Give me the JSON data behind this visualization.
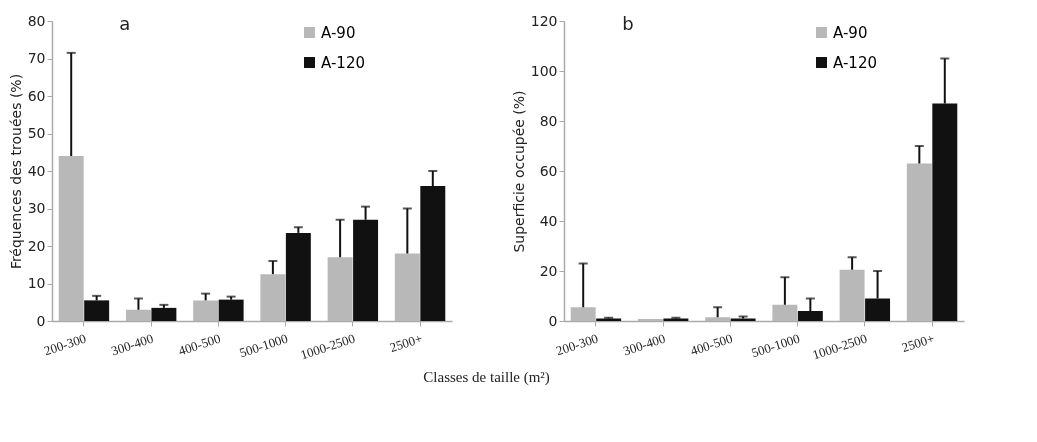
{
  "chart_data": [
    {
      "type": "bar",
      "title": "a",
      "xlabel": "Classes de taille (m²)",
      "ylabel": "Fréquences des trouées (%)",
      "categories": [
        "200-300",
        "300-400",
        "400-500",
        "500-1000",
        "1000-2500",
        "2500+"
      ],
      "ylim": [
        0,
        80
      ],
      "yticks": [
        0,
        10,
        20,
        30,
        40,
        50,
        60,
        70,
        80
      ],
      "grid": false,
      "legend": "top right",
      "series": [
        {
          "name": "A-90",
          "color": "#b8b8b8",
          "values": [
            44,
            3,
            5.5,
            12.5,
            17,
            18
          ],
          "errors": [
            [
              44,
              71.5
            ],
            [
              3,
              6
            ],
            [
              5.5,
              7.3
            ],
            [
              12.5,
              16
            ],
            [
              17,
              27
            ],
            [
              18,
              30
            ]
          ]
        },
        {
          "name": "A-120",
          "color": "#111111",
          "values": [
            5.5,
            3.5,
            5.7,
            23.5,
            27,
            36
          ],
          "errors": [
            [
              5.5,
              6.7
            ],
            [
              3.5,
              4.3
            ],
            [
              5.7,
              6.5
            ],
            [
              23.5,
              25
            ],
            [
              27,
              30.5
            ],
            [
              36,
              40
            ]
          ]
        }
      ]
    },
    {
      "type": "bar",
      "title": "b",
      "ylabel": "Superficie occupée (%)",
      "categories": [
        "200-300",
        "300-400",
        "400-500",
        "500-1000",
        "1000-2500",
        "2500+"
      ],
      "ylim": [
        0,
        120
      ],
      "yticks": [
        0,
        20,
        40,
        60,
        80,
        100,
        120
      ],
      "grid": false,
      "legend": "top right",
      "series": [
        {
          "name": "A-90",
          "color": "#b8b8b8",
          "values": [
            5.5,
            0.8,
            1.5,
            6.5,
            20.5,
            63
          ],
          "errors": [
            [
              5.5,
              23
            ],
            null,
            [
              1.5,
              5.5
            ],
            [
              6.5,
              17.5
            ],
            [
              20.5,
              25.5
            ],
            [
              63,
              70
            ]
          ]
        },
        {
          "name": "A-120",
          "color": "#111111",
          "values": [
            1,
            1,
            1,
            4,
            9,
            87
          ],
          "errors": [
            [
              1,
              1.3
            ],
            [
              1,
              1.3
            ],
            [
              1,
              1.8
            ],
            [
              4,
              9
            ],
            [
              9,
              20
            ],
            [
              87,
              105
            ]
          ]
        }
      ]
    }
  ]
}
